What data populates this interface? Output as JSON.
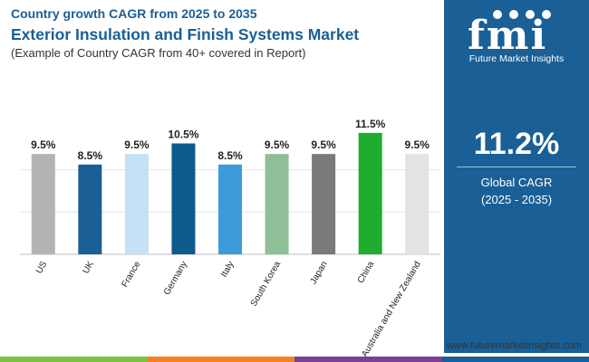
{
  "header": {
    "supertitle": "Country growth CAGR from 2025 to 2035",
    "title": "Exterior Insulation and Finish Systems Market",
    "subtitle": "(Example of Country CAGR from 40+ covered in Report)"
  },
  "chart_data": {
    "type": "bar",
    "title": "Exterior Insulation and Finish Systems Market",
    "xlabel": "",
    "ylabel": "",
    "ylim": [
      0,
      12
    ],
    "grid": true,
    "categories": [
      "US",
      "UK",
      "France",
      "Germany",
      "Italy",
      "South Korea",
      "Japan",
      "China",
      "Australia and New Zealand"
    ],
    "values": [
      9.5,
      8.5,
      9.5,
      10.5,
      8.5,
      9.5,
      9.5,
      11.5,
      9.5
    ],
    "value_labels": [
      "9.5%",
      "8.5%",
      "9.5%",
      "10.5%",
      "8.5%",
      "9.5%",
      "9.5%",
      "11.5%",
      "9.5%"
    ],
    "colors": [
      "#b3b3b3",
      "#1a5f95",
      "#c4e1f5",
      "#0f5a8c",
      "#3d9bdc",
      "#8fbf96",
      "#7a7a7a",
      "#1fad2f",
      "#e3e3e3"
    ]
  },
  "panel": {
    "logo_text": "fmi",
    "logo_caption": "Future Market Insights",
    "global_cagr": "11.2%",
    "cagr_label": "Global CAGR",
    "cagr_period": "(2025 - 2035)",
    "background": "#1a5f95"
  },
  "footer": {
    "website": "www.futuremarketinsights.com",
    "stripe_colors": [
      "#7cc242",
      "#f58220",
      "#7b3f98",
      "#1a5f95"
    ]
  }
}
